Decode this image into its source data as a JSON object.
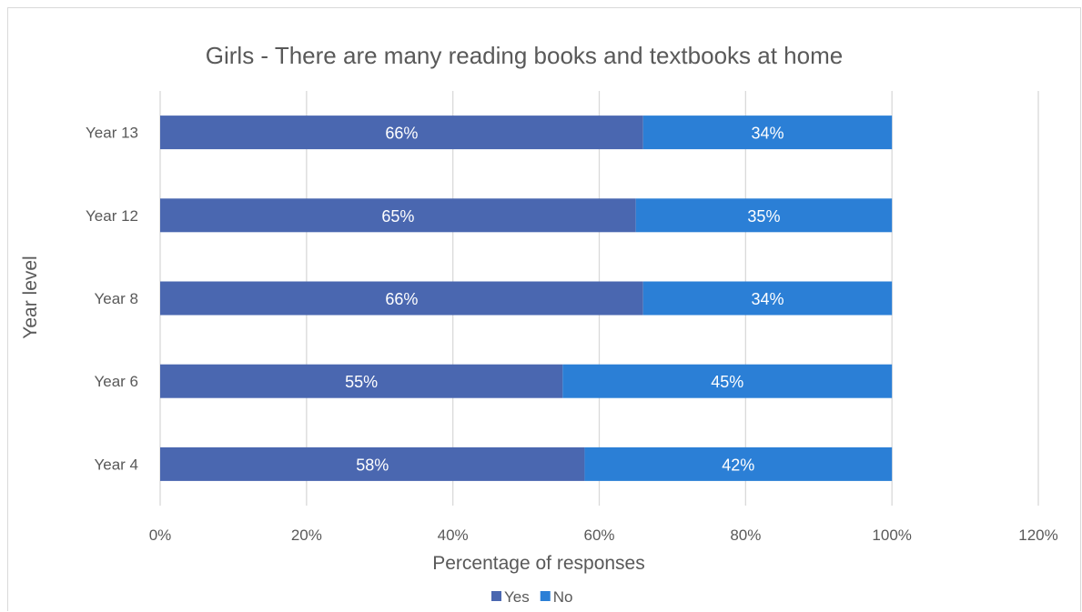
{
  "chart_data": {
    "type": "bar",
    "orientation": "horizontal",
    "stacked": true,
    "title": "Girls - There are many reading books and textbooks at home",
    "xlabel": "Percentage of responses",
    "ylabel": "Year level",
    "categories": [
      "Year 13",
      "Year 12",
      "Year 8",
      "Year 6",
      "Year 4"
    ],
    "series": [
      {
        "name": "Yes",
        "values": [
          66,
          65,
          66,
          55,
          58
        ],
        "labels": [
          "66%",
          "65%",
          "66%",
          "55%",
          "58%"
        ],
        "color": "#4a67b0"
      },
      {
        "name": "No",
        "values": [
          34,
          35,
          34,
          45,
          42
        ],
        "labels": [
          "34%",
          "35%",
          "34%",
          "45%",
          "42%"
        ],
        "color": "#2b7fd6"
      }
    ],
    "xlim": [
      0,
      120
    ],
    "x_ticks": [
      "0%",
      "20%",
      "40%",
      "60%",
      "80%",
      "100%",
      "120%"
    ],
    "grid": true,
    "legend_position": "bottom"
  }
}
